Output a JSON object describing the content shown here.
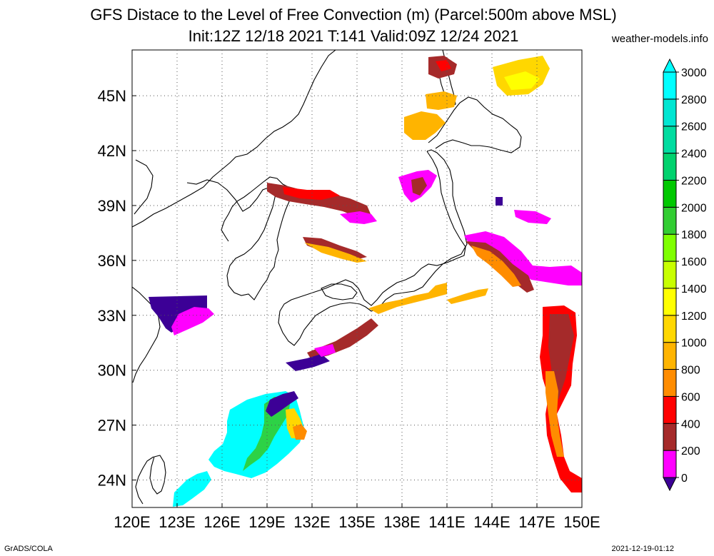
{
  "header": {
    "title": "GFS Distace to the Level of Free Convection (m) (Parcel:500m above MSL)",
    "subtitle": "Init:12Z 12/18 2021 T:141 Valid:09Z 12/24 2021",
    "credit": "weather-models.info"
  },
  "footer": {
    "left": "GrADS/COLA",
    "right": "2021-12-19-01:12"
  },
  "map": {
    "lon_labels": [
      "120E",
      "123E",
      "126E",
      "129E",
      "132E",
      "135E",
      "138E",
      "141E",
      "144E",
      "147E",
      "150E"
    ],
    "lat_labels": [
      "24N",
      "27N",
      "30N",
      "33N",
      "36N",
      "39N",
      "42N",
      "45N"
    ],
    "lon_range": [
      120,
      150
    ],
    "lat_range": [
      22.5,
      47.5
    ],
    "grid": true
  },
  "colorbar": {
    "labels": [
      "0",
      "200",
      "400",
      "600",
      "800",
      "1000",
      "1200",
      "1400",
      "1600",
      "1800",
      "2000",
      "2200",
      "2400",
      "2600",
      "2800",
      "3000"
    ],
    "colors": [
      "#3c0096",
      "#ff00ff",
      "#a52a2a",
      "#ff0000",
      "#ff8c00",
      "#ffb400",
      "#ffd700",
      "#ffff00",
      "#c8ff00",
      "#7fff00",
      "#32cd32",
      "#00c800",
      "#00d26e",
      "#00dca0",
      "#00e6d2",
      "#00ffff"
    ]
  }
}
